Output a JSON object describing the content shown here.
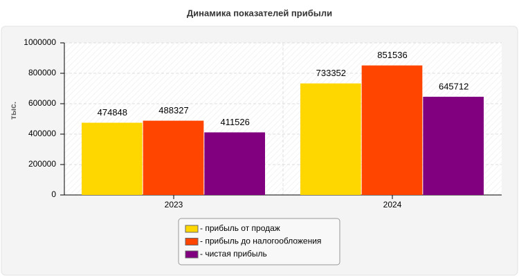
{
  "chart_data": {
    "type": "bar",
    "title": "Динамика показателей прибыли",
    "y_label": "тыс.",
    "categories": [
      "2023",
      "2024"
    ],
    "series": [
      {
        "name": "- прибыль от продаж",
        "color": "#ffd700",
        "values": [
          474848,
          733352
        ]
      },
      {
        "name": "- прибыль до налогообложения",
        "color": "#ff4500",
        "values": [
          488327,
          851536
        ]
      },
      {
        "name": "- чистая прибыль",
        "color": "#800080",
        "values": [
          411526,
          645712
        ]
      }
    ],
    "ylim": [
      0,
      1000000
    ],
    "yticks": [
      0,
      200000,
      400000,
      600000,
      800000,
      1000000
    ],
    "grid": true,
    "legend": "bottom"
  }
}
